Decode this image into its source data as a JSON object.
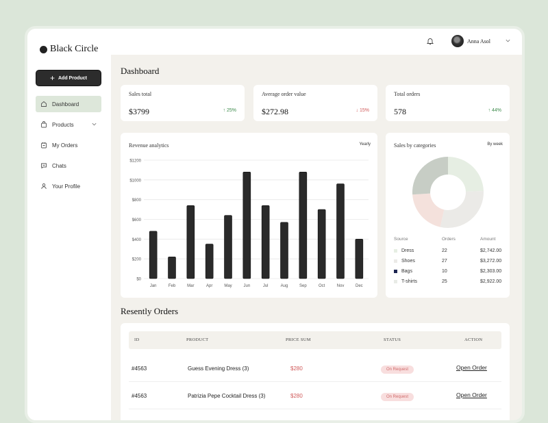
{
  "brand": {
    "name": "Black Circle"
  },
  "sidebar": {
    "add_button": "Add Product",
    "items": [
      {
        "label": "Dashboard",
        "icon": "home-icon"
      },
      {
        "label": "Products",
        "icon": "bag-icon"
      },
      {
        "label": "My Orders",
        "icon": "calendar-icon"
      },
      {
        "label": "Chats",
        "icon": "chat-icon"
      },
      {
        "label": "Your Profile",
        "icon": "user-icon"
      }
    ]
  },
  "header": {
    "user_name": "Anna Asol"
  },
  "page": {
    "title": "Dashboard"
  },
  "stats": [
    {
      "label": "Sales total",
      "value": "$3799",
      "delta": "25%",
      "direction": "up",
      "color": "#3b8a4a"
    },
    {
      "label": "Average order value",
      "value": "$272.98",
      "delta": "15%",
      "direction": "down",
      "color": "#d05a5a"
    },
    {
      "label": "Total orders",
      "value": "578",
      "delta": "44%",
      "direction": "up",
      "color": "#3b8a4a"
    }
  ],
  "revenue": {
    "title": "Revenue analytics",
    "filter": "Yearly"
  },
  "chart_data": [
    {
      "type": "bar",
      "title": "Revenue analytics",
      "categories": [
        "Jan",
        "Feb",
        "Mar",
        "Apr",
        "May",
        "Jun",
        "Jul",
        "Aug",
        "Sep",
        "Oct",
        "Nov",
        "Dec"
      ],
      "values": [
        480,
        220,
        740,
        350,
        640,
        1080,
        740,
        570,
        1080,
        700,
        960,
        400
      ],
      "ylim": [
        0,
        1200
      ],
      "yticks": [
        "$0",
        "$200",
        "$400",
        "$600",
        "$800",
        "$1000",
        "$1200"
      ],
      "bar_color": "#2a2a2a",
      "grid": true
    },
    {
      "type": "pie",
      "title": "Sales by categories",
      "categories": [
        "Dress",
        "Shoes",
        "Bags",
        "T-shirts"
      ],
      "values": [
        2742,
        3272,
        2303,
        2922
      ],
      "colors": [
        "#e6eee3",
        "#ebeae7",
        "#f4e1dc",
        "#c7cdc5"
      ]
    }
  ],
  "categories": {
    "title": "Sales by categories",
    "filter": "By week",
    "headers": [
      "Source",
      "Orders",
      "Amount"
    ],
    "rows": [
      {
        "source": "Dress",
        "orders": "22",
        "amount": "$2,742.00",
        "color": "#e6eee3"
      },
      {
        "source": "Shoes",
        "orders": "27",
        "amount": "$3,272.00",
        "color": "#ebeae7"
      },
      {
        "source": "Bags",
        "orders": "10",
        "amount": "$2,303.00",
        "color": "#1c2552"
      },
      {
        "source": "T-shirts",
        "orders": "25",
        "amount": "$2,922.00",
        "color": "#e8ebe6"
      }
    ]
  },
  "orders": {
    "title": "Resently Orders",
    "headers": {
      "id": "ID",
      "product": "PRODUCT",
      "price": "PRICE SUM",
      "status": "STATUS",
      "action": "ACTION"
    },
    "rows": [
      {
        "id": "#4563",
        "product": "Guess Evening Dress  (3)",
        "price": "$280",
        "status": "On Request",
        "action": "Open Order"
      },
      {
        "id": "#4563",
        "product": "Patrizia Pepe Cocktail Dress (3)",
        "price": "$280",
        "status": "On Request",
        "action": "Open Order"
      }
    ]
  }
}
